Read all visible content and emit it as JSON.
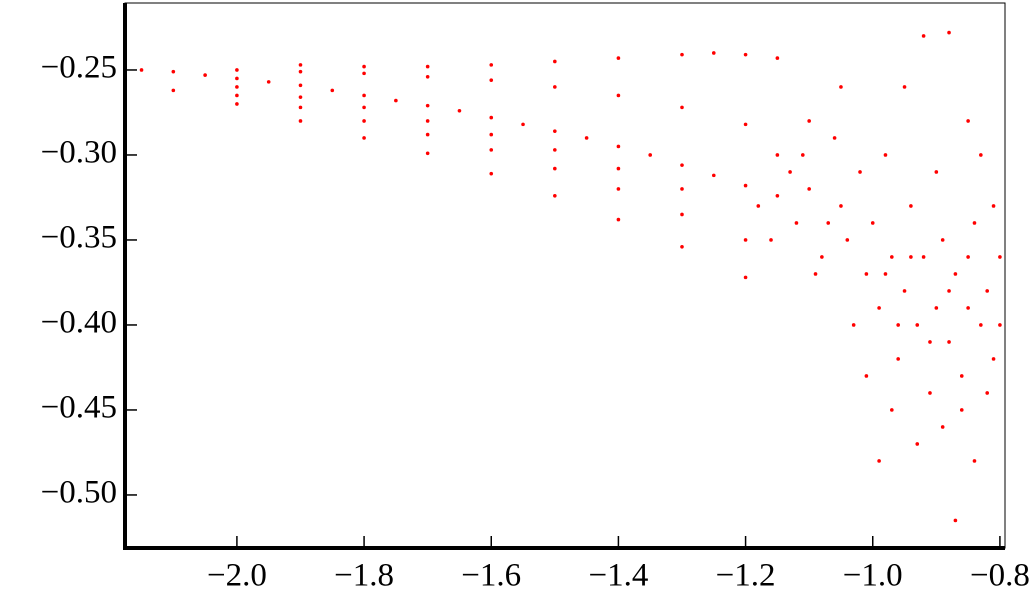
{
  "chart_data": {
    "type": "scatter",
    "color": "#ff0000",
    "xlim": [
      -2.176,
      -0.792
    ],
    "ylim": [
      -0.5312,
      -0.2106
    ],
    "xticks": [
      {
        "value": -2.0,
        "label": "−2.0"
      },
      {
        "value": -1.8,
        "label": "−1.8"
      },
      {
        "value": -1.6,
        "label": "−1.6"
      },
      {
        "value": -1.4,
        "label": "−1.4"
      },
      {
        "value": -1.2,
        "label": "−1.2"
      },
      {
        "value": -1.0,
        "label": "−1.0"
      },
      {
        "value": -0.8,
        "label": "−0.8"
      }
    ],
    "yticks": [
      {
        "value": -0.25,
        "label": "−0.25"
      },
      {
        "value": -0.3,
        "label": "−0.30"
      },
      {
        "value": -0.35,
        "label": "−0.35"
      },
      {
        "value": -0.4,
        "label": "−0.40"
      },
      {
        "value": -0.45,
        "label": "−0.45"
      },
      {
        "value": -0.5,
        "label": "−0.50"
      }
    ],
    "x": [
      -2.15,
      -2.1,
      -2.05,
      -2.0,
      -1.95,
      -1.9,
      -1.85,
      -1.8,
      -1.75,
      -1.7,
      -1.65,
      -1.6,
      -1.55,
      -1.5,
      -1.45,
      -1.4,
      -1.35,
      -1.3,
      -1.25,
      -1.2,
      -1.15,
      -2.1,
      -2.0,
      -1.9,
      -1.8,
      -1.7,
      -1.6,
      -1.5,
      -1.4,
      -1.3,
      -1.2,
      -2.0,
      -1.9,
      -1.8,
      -1.7,
      -1.6,
      -1.5,
      -1.4,
      -1.3,
      -1.2,
      -2.0,
      -1.9,
      -1.8,
      -1.7,
      -1.6,
      -1.5,
      -1.4,
      -1.3,
      -2.0,
      -1.9,
      -1.8,
      -1.7,
      -1.6,
      -1.5,
      -1.4,
      -1.3,
      -1.2,
      -1.9,
      -1.8,
      -1.7,
      -1.6,
      -1.5,
      -1.4,
      -1.3,
      -1.25,
      -1.2,
      -1.15,
      -1.15,
      -1.12,
      -1.1,
      -1.08,
      -1.06,
      -1.05,
      -1.04,
      -1.02,
      -1.01,
      -1.0,
      -0.99,
      -0.98,
      -0.97,
      -0.96,
      -0.95,
      -0.94,
      -0.93,
      -0.92,
      -0.91,
      -0.9,
      -0.89,
      -0.88,
      -0.87,
      -0.86,
      -0.85,
      -0.84,
      -0.83,
      -0.82,
      -0.81,
      -0.8,
      -0.99,
      -0.87,
      -0.84,
      -0.92,
      -0.88,
      -1.05,
      -0.95,
      -1.1,
      -1.13,
      -1.18,
      -1.16,
      -1.09,
      -1.03,
      -1.01,
      -0.97,
      -0.93,
      -0.89,
      -0.86,
      -0.82,
      -0.81,
      -0.83,
      -0.85,
      -0.9,
      -0.94,
      -0.96,
      -0.98,
      -1.07,
      -1.11,
      -0.88,
      -0.91,
      -0.85,
      -0.8
    ],
    "values": [
      -0.25,
      -0.251,
      -0.253,
      -0.255,
      -0.257,
      -0.259,
      -0.262,
      -0.265,
      -0.268,
      -0.271,
      -0.274,
      -0.278,
      -0.282,
      -0.286,
      -0.29,
      -0.295,
      -0.3,
      -0.306,
      -0.312,
      -0.318,
      -0.324,
      -0.262,
      -0.27,
      -0.28,
      -0.29,
      -0.299,
      -0.311,
      -0.324,
      -0.338,
      -0.354,
      -0.372,
      -0.265,
      -0.272,
      -0.28,
      -0.288,
      -0.297,
      -0.308,
      -0.32,
      -0.335,
      -0.35,
      -0.26,
      -0.266,
      -0.272,
      -0.28,
      -0.288,
      -0.297,
      -0.308,
      -0.32,
      -0.25,
      -0.251,
      -0.252,
      -0.254,
      -0.256,
      -0.26,
      -0.265,
      -0.272,
      -0.282,
      -0.247,
      -0.248,
      -0.248,
      -0.247,
      -0.245,
      -0.243,
      -0.241,
      -0.24,
      -0.241,
      -0.243,
      -0.3,
      -0.34,
      -0.32,
      -0.36,
      -0.29,
      -0.33,
      -0.35,
      -0.31,
      -0.37,
      -0.34,
      -0.39,
      -0.3,
      -0.36,
      -0.42,
      -0.38,
      -0.33,
      -0.4,
      -0.36,
      -0.44,
      -0.39,
      -0.35,
      -0.41,
      -0.37,
      -0.43,
      -0.39,
      -0.34,
      -0.4,
      -0.38,
      -0.42,
      -0.36,
      -0.48,
      -0.515,
      -0.48,
      -0.23,
      -0.228,
      -0.26,
      -0.26,
      -0.28,
      -0.31,
      -0.33,
      -0.35,
      -0.37,
      -0.4,
      -0.43,
      -0.45,
      -0.47,
      -0.46,
      -0.45,
      -0.44,
      -0.33,
      -0.3,
      -0.28,
      -0.31,
      -0.36,
      -0.4,
      -0.37,
      -0.34,
      -0.3,
      -0.38,
      -0.41,
      -0.36,
      -0.4
    ]
  }
}
